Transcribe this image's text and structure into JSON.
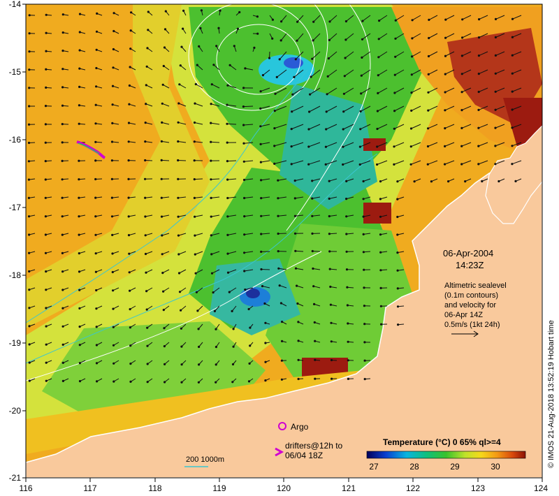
{
  "map": {
    "lon_ticks": [
      "116",
      "117",
      "118",
      "119",
      "120",
      "121",
      "122",
      "123",
      "124"
    ],
    "lat_ticks": [
      "-14",
      "-15",
      "-16",
      "-17",
      "-18",
      "-19",
      "-20",
      "-21"
    ]
  },
  "annotation": {
    "date": "06-Apr-2004",
    "time": "14:23Z",
    "desc_lines": [
      "Altimetric sealevel",
      "(0.1m contours)",
      "and velocity for",
      "06-Apr 14Z",
      "0.5m/s (1kt 24h)"
    ]
  },
  "legend": {
    "argo_label": "Argo",
    "drifters_label_lines": [
      "drifters@12h to",
      "06/04 18Z"
    ],
    "depth_label": "200  1000m"
  },
  "colorbar": {
    "title": "Temperature (°C) 0 65% ql>=4",
    "ticks": [
      "27",
      "28",
      "29",
      "30"
    ]
  },
  "credit": "© IMOS 21-Aug-2018 13:52:19 Hobart time",
  "colors": {
    "land": "#f9c99c",
    "warm_orange": "#f0ab1f",
    "yellow_green": "#c9e03a",
    "green": "#4cc02f",
    "teal": "#2fb79a",
    "cold_blue": "#2a5bd6",
    "hot_red": "#9c1b10",
    "argo": "#d000d0",
    "isobath": "#3bc6d0"
  }
}
